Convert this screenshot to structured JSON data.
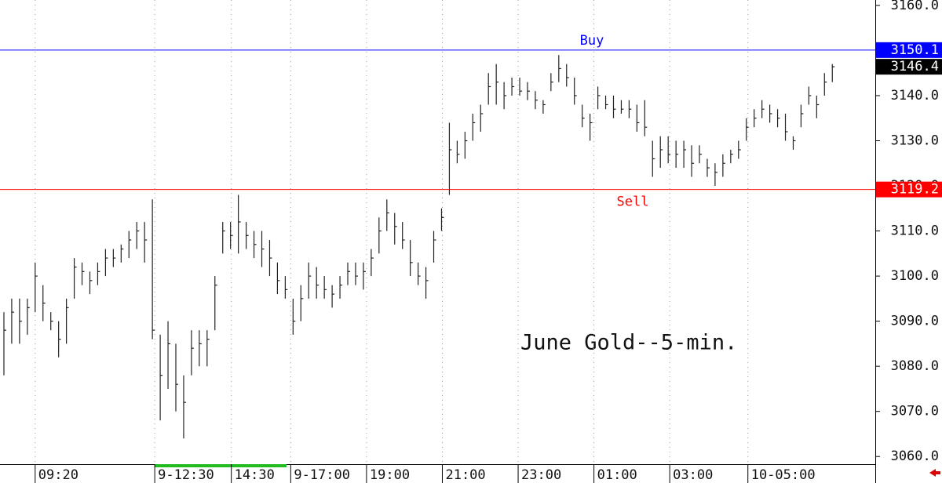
{
  "chart_data": {
    "type": "ohlc",
    "annotation": "June Gold--5-min.",
    "color": "#222222",
    "grid": true,
    "x": [
      0,
      1,
      2,
      3,
      4,
      5,
      6,
      7,
      8,
      9,
      10,
      11,
      12,
      13,
      14,
      15,
      16,
      17,
      18,
      19,
      20,
      21,
      22,
      23,
      24,
      25,
      26,
      27,
      28,
      29,
      30,
      31,
      32,
      33,
      34,
      35,
      36,
      37,
      38,
      39,
      40,
      41,
      42,
      43,
      44,
      45,
      46,
      47,
      48,
      49,
      50,
      51,
      52,
      53,
      54,
      55,
      56,
      57,
      58,
      59,
      60,
      61,
      62,
      63,
      64,
      65,
      66,
      67,
      68,
      69,
      70,
      71,
      72,
      73,
      74,
      75,
      76,
      77,
      78,
      79,
      80,
      81,
      82,
      83,
      84,
      85,
      86,
      87,
      88,
      89,
      90,
      91,
      92,
      93,
      94,
      95,
      96,
      97,
      98,
      99,
      100,
      101,
      102,
      103,
      104,
      105,
      106
    ],
    "high": [
      3092,
      3095,
      3095,
      3095,
      3103,
      3098,
      3092,
      3090,
      3095,
      3104,
      3103,
      3101,
      3103,
      3106,
      3106,
      3107,
      3110,
      3112,
      3112,
      3117,
      3087,
      3090,
      3085,
      3078,
      3088,
      3088,
      3088,
      3100,
      3112,
      3112,
      3118,
      3112,
      3110,
      3110,
      3108,
      3103,
      3100,
      3095,
      3098,
      3103,
      3102,
      3100,
      3098,
      3100,
      3103,
      3103,
      3103,
      3106,
      3113,
      3117,
      3114,
      3112,
      3108,
      3103,
      3102,
      3110,
      3115,
      3134,
      3130,
      3132,
      3136,
      3138,
      3145,
      3147,
      3143,
      3144,
      3144,
      3143,
      3141,
      3139,
      3145,
      3149,
      3147,
      3144,
      3138,
      3136,
      3142,
      3140,
      3140,
      3139,
      3139,
      3138,
      3139,
      3130,
      3131,
      3131,
      3130,
      3130,
      3129,
      3129,
      3126,
      3125,
      3127,
      3128,
      3130,
      3135,
      3137,
      3139,
      3138,
      3137,
      3136,
      3131,
      3138,
      3142,
      3140,
      3145,
      3147
    ],
    "low": [
      3078,
      3085,
      3085,
      3087,
      3092,
      3090,
      3088,
      3082,
      3085,
      3095,
      3098,
      3096,
      3098,
      3100,
      3102,
      3103,
      3104,
      3106,
      3103,
      3086,
      3068,
      3075,
      3070,
      3064,
      3078,
      3080,
      3080,
      3088,
      3105,
      3106,
      3105,
      3106,
      3104,
      3102,
      3100,
      3096,
      3095,
      3087,
      3090,
      3095,
      3095,
      3095,
      3093,
      3095,
      3098,
      3098,
      3097,
      3100,
      3105,
      3110,
      3107,
      3106,
      3100,
      3098,
      3095,
      3103,
      3110,
      3118,
      3125,
      3126,
      3130,
      3132,
      3138,
      3138,
      3137,
      3140,
      3140,
      3139,
      3137,
      3136,
      3141,
      3143,
      3142,
      3138,
      3133,
      3130,
      3137,
      3137,
      3135,
      3136,
      3135,
      3132,
      3131,
      3122,
      3124,
      3125,
      3124,
      3124,
      3122,
      3125,
      3122,
      3120,
      3122,
      3125,
      3126,
      3130,
      3133,
      3135,
      3134,
      3133,
      3130,
      3128,
      3133,
      3138,
      3135,
      3140,
      3143
    ],
    "close": [
      3088,
      3092,
      3090,
      3093,
      3100,
      3094,
      3090,
      3086,
      3093,
      3102,
      3101,
      3099,
      3101,
      3104,
      3104,
      3106,
      3108,
      3110,
      3108,
      3088,
      3078,
      3085,
      3076,
      3072,
      3084,
      3085,
      3086,
      3098,
      3110,
      3109,
      3112,
      3109,
      3107,
      3106,
      3104,
      3099,
      3097,
      3090,
      3095,
      3100,
      3098,
      3097,
      3096,
      3098,
      3101,
      3100,
      3101,
      3104,
      3110,
      3114,
      3111,
      3108,
      3103,
      3100,
      3099,
      3108,
      3113,
      3128,
      3127,
      3130,
      3134,
      3136,
      3142,
      3143,
      3140,
      3142,
      3141,
      3141,
      3139,
      3138,
      3143,
      3146,
      3144,
      3140,
      3135,
      3134,
      3140,
      3138,
      3137,
      3137,
      3137,
      3134,
      3133,
      3126,
      3128,
      3127,
      3127,
      3128,
      3125,
      3127,
      3124,
      3123,
      3125,
      3127,
      3128,
      3133,
      3135,
      3137,
      3136,
      3135,
      3132,
      3130,
      3136,
      3140,
      3138,
      3143,
      3146.4
    ],
    "xlim": [
      -0.5,
      111.5
    ],
    "xticks": [
      {
        "value": 4.0,
        "label": "09:20"
      },
      {
        "value": 19.3,
        "label": "9-12:30"
      },
      {
        "value": 29.1,
        "label": "14:30"
      },
      {
        "value": 36.7,
        "label": "9-17:00"
      },
      {
        "value": 46.4,
        "label": "19:00"
      },
      {
        "value": 56.1,
        "label": "21:00"
      },
      {
        "value": 65.8,
        "label": "23:00"
      },
      {
        "value": 75.5,
        "label": "01:00"
      },
      {
        "value": 85.2,
        "label": "03:00"
      },
      {
        "value": 95.2,
        "label": "10-05:00"
      }
    ],
    "ylim": [
      3058.3,
      3161.2
    ],
    "yticks": [
      {
        "value": 3060,
        "label": "3060.0"
      },
      {
        "value": 3070,
        "label": "3070.0"
      },
      {
        "value": 3080,
        "label": "3080.0"
      },
      {
        "value": 3090,
        "label": "3090.0"
      },
      {
        "value": 3100,
        "label": "3100.0"
      },
      {
        "value": 3110,
        "label": "3110.0"
      },
      {
        "value": 3120,
        "label": "3120.0"
      },
      {
        "value": 3130,
        "label": "3130.0"
      },
      {
        "value": 3140,
        "label": "3140.0"
      },
      {
        "value": 3150,
        "label": "3150.0"
      },
      {
        "value": 3160,
        "label": "3160.0"
      }
    ],
    "levels": [
      {
        "name": "Buy",
        "value": 3150.1,
        "label": "3150.1",
        "color": "#0000ff"
      },
      {
        "name": "Sell",
        "value": 3119.2,
        "label": "3119.2",
        "color": "#ff0000"
      }
    ],
    "last": {
      "value": 3146.4,
      "label": "3146.4",
      "color": "#000000"
    }
  }
}
